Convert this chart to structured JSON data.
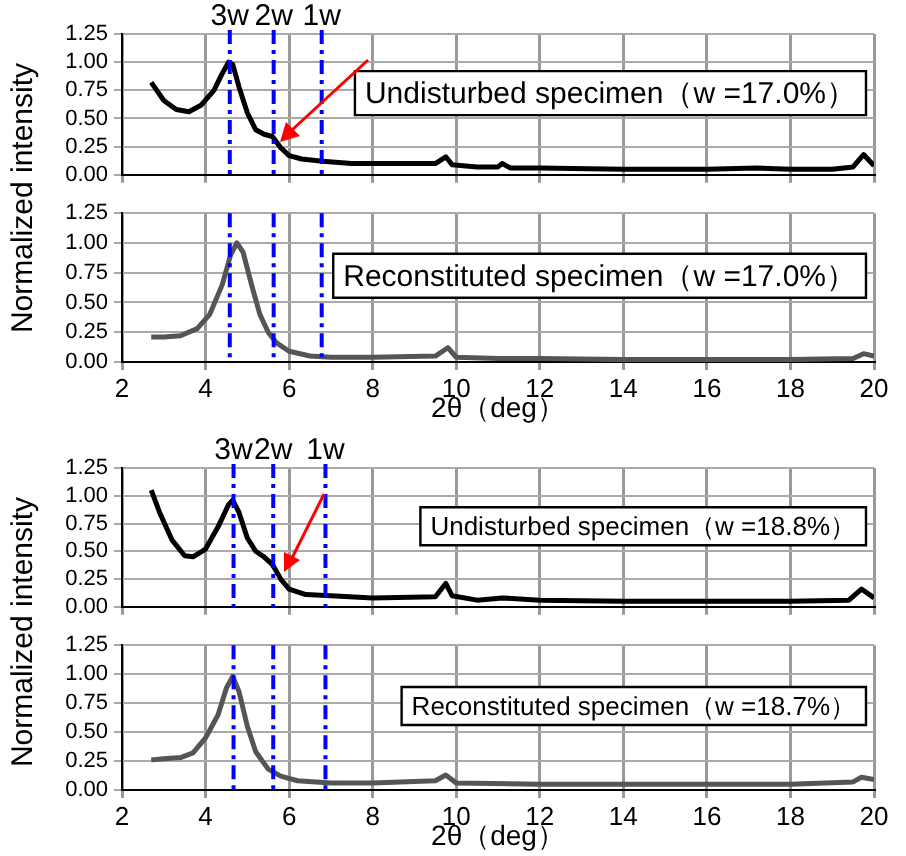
{
  "chart_data": [
    {
      "type": "line",
      "ylabel": "Normalized intensity",
      "xlim": [
        2,
        20
      ],
      "ylim": [
        0,
        1.25
      ],
      "xticks": [
        2,
        4,
        6,
        8,
        10,
        12,
        14,
        16,
        18,
        20
      ],
      "yticks": [
        {
          "value": 0,
          "label": "0.00"
        },
        {
          "value": 0.25,
          "label": "0.25"
        },
        {
          "value": 0.5,
          "label": "0.50"
        },
        {
          "value": 0.75,
          "label": "0.75"
        },
        {
          "value": 1,
          "label": "1.00"
        },
        {
          "value": 1.25,
          "label": "1.25"
        }
      ],
      "tick_labels": "y",
      "grid": true,
      "legend": false,
      "marker": "none",
      "line_style": "solid",
      "annotations": [
        "Undisturbed specimen（w =17.0%）"
      ],
      "ref_lines": [
        {
          "axis": "x",
          "value": 4.58,
          "label": "3w",
          "color": "#0000ff",
          "line_style": "dashed"
        },
        {
          "axis": "x",
          "value": 5.63,
          "label": "2w",
          "color": "#0000ff",
          "line_style": "dashed"
        },
        {
          "axis": "x",
          "value": 6.78,
          "label": "1w",
          "color": "#0000ff",
          "line_style": "dashed"
        }
      ],
      "series": [
        {
          "color": "#000000",
          "x": [
            2.7,
            3.0,
            3.3,
            3.6,
            3.9,
            4.2,
            4.4,
            4.55,
            4.65,
            4.8,
            5.0,
            5.2,
            5.4,
            5.6,
            5.8,
            6.0,
            6.3,
            6.8,
            7.5,
            8.5,
            9.5,
            9.75,
            9.9,
            10.5,
            11.0,
            11.1,
            11.3,
            12,
            14,
            16,
            17.2,
            18,
            19,
            19.5,
            19.75,
            20
          ],
          "values": [
            0.82,
            0.66,
            0.58,
            0.56,
            0.62,
            0.75,
            0.9,
            1.0,
            0.98,
            0.78,
            0.55,
            0.4,
            0.36,
            0.34,
            0.24,
            0.17,
            0.14,
            0.12,
            0.1,
            0.1,
            0.1,
            0.16,
            0.09,
            0.07,
            0.07,
            0.1,
            0.06,
            0.06,
            0.05,
            0.05,
            0.06,
            0.05,
            0.05,
            0.07,
            0.18,
            0.08
          ]
        }
      ]
    },
    {
      "type": "line",
      "xlabel": "2θ（deg）",
      "xlim": [
        2,
        20
      ],
      "ylim": [
        0,
        1.25
      ],
      "xticks": [
        2,
        4,
        6,
        8,
        10,
        12,
        14,
        16,
        18,
        20
      ],
      "yticks": [
        {
          "value": 0,
          "label": "0.00"
        },
        {
          "value": 0.25,
          "label": "0.25"
        },
        {
          "value": 0.5,
          "label": "0.50"
        },
        {
          "value": 0.75,
          "label": "0.75"
        },
        {
          "value": 1,
          "label": "1.00"
        },
        {
          "value": 1.25,
          "label": "1.25"
        }
      ],
      "grid": true,
      "legend": false,
      "marker": "none",
      "line_style": "solid",
      "annotations": [
        "Reconstituted specimen（w =17.0%）"
      ],
      "ref_lines": [
        {
          "axis": "x",
          "value": 4.58,
          "color": "#0000ff",
          "line_style": "dashed"
        },
        {
          "axis": "x",
          "value": 5.63,
          "color": "#0000ff",
          "line_style": "dashed"
        },
        {
          "axis": "x",
          "value": 6.78,
          "color": "#0000ff",
          "line_style": "dashed"
        }
      ],
      "series": [
        {
          "color": "#555555",
          "x": [
            2.7,
            3.0,
            3.4,
            3.8,
            4.1,
            4.4,
            4.6,
            4.75,
            4.9,
            5.1,
            5.3,
            5.5,
            5.7,
            6.0,
            6.5,
            7,
            8,
            9.5,
            9.8,
            10,
            11,
            12,
            14,
            16,
            18,
            19.5,
            19.75,
            20
          ],
          "values": [
            0.21,
            0.21,
            0.22,
            0.28,
            0.4,
            0.65,
            0.9,
            1.0,
            0.92,
            0.65,
            0.4,
            0.25,
            0.16,
            0.09,
            0.05,
            0.04,
            0.04,
            0.05,
            0.12,
            0.04,
            0.03,
            0.03,
            0.02,
            0.02,
            0.02,
            0.03,
            0.07,
            0.05
          ]
        }
      ]
    },
    {
      "type": "line",
      "ylabel": "Normalized intensity",
      "xlim": [
        2,
        20
      ],
      "ylim": [
        0,
        1.25
      ],
      "xticks": [
        2,
        4,
        6,
        8,
        10,
        12,
        14,
        16,
        18,
        20
      ],
      "yticks": [
        {
          "value": 0,
          "label": "0.00"
        },
        {
          "value": 0.25,
          "label": "0.25"
        },
        {
          "value": 0.5,
          "label": "0.50"
        },
        {
          "value": 0.75,
          "label": "0.75"
        },
        {
          "value": 1,
          "label": "1.00"
        },
        {
          "value": 1.25,
          "label": "1.25"
        }
      ],
      "tick_labels": "y",
      "grid": true,
      "legend": false,
      "marker": "none",
      "line_style": "solid",
      "annotations": [
        "Undisturbed specimen（w =18.8%）"
      ],
      "ref_lines": [
        {
          "axis": "x",
          "value": 4.67,
          "label": "3w",
          "color": "#0000ff",
          "line_style": "dashed"
        },
        {
          "axis": "x",
          "value": 5.62,
          "label": "2w",
          "color": "#0000ff",
          "line_style": "dashed"
        },
        {
          "axis": "x",
          "value": 6.87,
          "label": "1w",
          "color": "#0000ff",
          "line_style": "dashed"
        }
      ],
      "series": [
        {
          "color": "#000000",
          "x": [
            2.7,
            2.9,
            3.2,
            3.5,
            3.7,
            4.0,
            4.3,
            4.55,
            4.65,
            4.8,
            5.0,
            5.2,
            5.4,
            5.6,
            5.8,
            6.0,
            6.4,
            7,
            8,
            9.5,
            9.75,
            9.9,
            10.5,
            11.1,
            12,
            14,
            16,
            18,
            19.4,
            19.7,
            20
          ],
          "values": [
            1.05,
            0.85,
            0.6,
            0.46,
            0.45,
            0.52,
            0.72,
            0.92,
            0.96,
            0.85,
            0.62,
            0.5,
            0.45,
            0.38,
            0.25,
            0.16,
            0.11,
            0.1,
            0.08,
            0.09,
            0.21,
            0.1,
            0.06,
            0.08,
            0.06,
            0.05,
            0.05,
            0.05,
            0.06,
            0.16,
            0.08
          ]
        }
      ]
    },
    {
      "type": "line",
      "xlabel": "2θ（deg）",
      "xlim": [
        2,
        20
      ],
      "ylim": [
        0,
        1.25
      ],
      "xticks": [
        2,
        4,
        6,
        8,
        10,
        12,
        14,
        16,
        18,
        20
      ],
      "yticks": [
        {
          "value": 0,
          "label": "0.00"
        },
        {
          "value": 0.25,
          "label": "0.25"
        },
        {
          "value": 0.5,
          "label": "0.50"
        },
        {
          "value": 0.75,
          "label": "0.75"
        },
        {
          "value": 1,
          "label": "1.00"
        },
        {
          "value": 1.25,
          "label": "1.25"
        }
      ],
      "grid": true,
      "legend": false,
      "marker": "none",
      "line_style": "solid",
      "annotations": [
        "Reconstituted specimen（w =18.7%）"
      ],
      "ref_lines": [
        {
          "axis": "x",
          "value": 4.67,
          "color": "#0000ff",
          "line_style": "dashed"
        },
        {
          "axis": "x",
          "value": 5.62,
          "color": "#0000ff",
          "line_style": "dashed"
        },
        {
          "axis": "x",
          "value": 6.87,
          "color": "#0000ff",
          "line_style": "dashed"
        }
      ],
      "series": [
        {
          "color": "#555555",
          "x": [
            2.7,
            3.0,
            3.4,
            3.7,
            4.0,
            4.3,
            4.5,
            4.65,
            4.8,
            5.0,
            5.2,
            5.5,
            5.8,
            6.2,
            7,
            8,
            9.5,
            9.75,
            10,
            12,
            14,
            16,
            18,
            19.5,
            19.7,
            20
          ],
          "values": [
            0.26,
            0.27,
            0.28,
            0.32,
            0.45,
            0.65,
            0.88,
            0.98,
            0.85,
            0.55,
            0.33,
            0.18,
            0.12,
            0.08,
            0.06,
            0.06,
            0.08,
            0.13,
            0.06,
            0.05,
            0.05,
            0.05,
            0.05,
            0.07,
            0.11,
            0.09
          ]
        }
      ]
    }
  ]
}
